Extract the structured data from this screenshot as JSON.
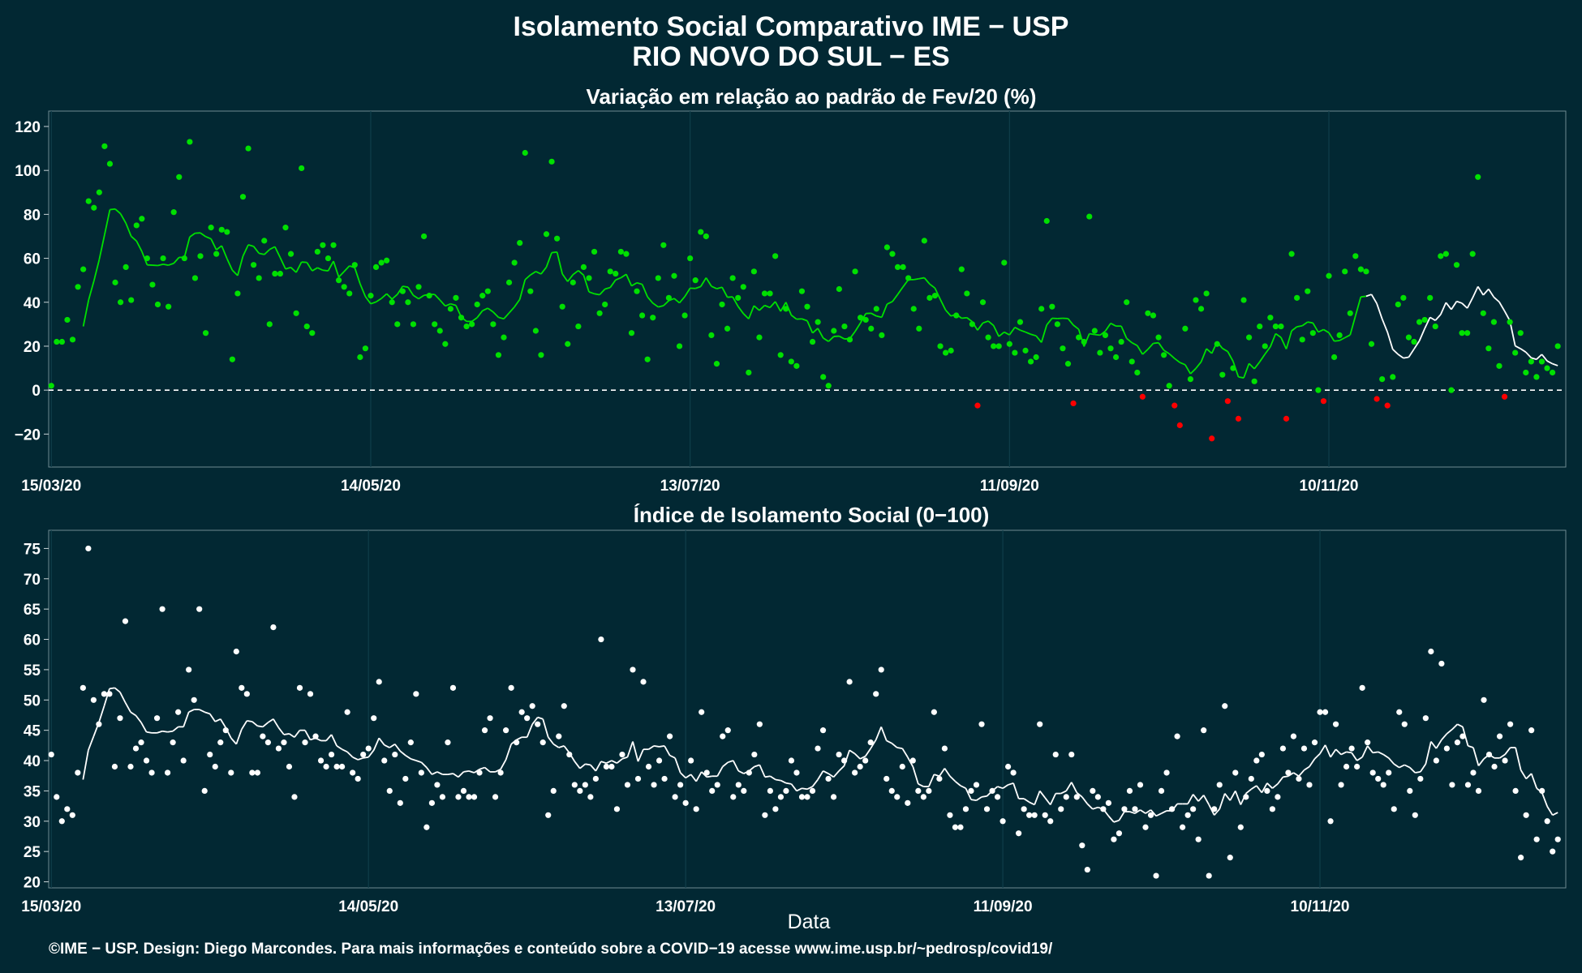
{
  "title_line1": "Isolamento Social Comparativo IME − USP",
  "title_line2": "RIO NOVO DO SUL − ES",
  "x_label": "Data",
  "caption": "©IME − USP. Design: Diego Marcondes. Para mais informações e conteúdo sobre a COVID−19 acesse www.ime.usp.br/~pedrosp/covid19/",
  "colors": {
    "background": "#022833",
    "positive": "#00e000",
    "negative": "#ff0000",
    "recent": "#ffffff",
    "index": "#ffffff"
  },
  "chart_data": [
    {
      "type": "scatter",
      "title": "Variação em relação ao padrão de Fev/20 (%)",
      "x_start": "15/03/20",
      "x_tick_labels": [
        "15/03/20",
        "14/05/20",
        "13/07/20",
        "11/09/20",
        "10/11/20"
      ],
      "ylim": [
        -35,
        127
      ],
      "y_ticks": [
        -20,
        0,
        20,
        40,
        60,
        80,
        100,
        120
      ],
      "reference_line": 0,
      "series": [
        {
          "values": [
            2,
            22,
            22,
            32,
            23,
            47,
            55,
            86,
            83,
            90,
            111,
            103,
            49,
            40,
            56,
            41,
            75,
            78,
            60,
            48,
            39,
            60,
            38,
            81,
            97,
            60,
            113,
            51,
            61,
            26,
            74,
            62,
            73,
            72,
            14,
            44,
            88,
            110,
            57,
            51,
            68,
            30,
            53,
            53,
            74,
            62,
            35,
            101,
            29,
            26,
            63,
            66,
            60,
            66,
            50,
            47,
            44,
            57,
            15,
            19,
            43,
            56,
            58,
            59,
            40,
            30,
            45,
            40,
            30,
            47,
            70,
            43,
            30,
            27,
            21,
            37,
            42,
            33,
            29,
            30,
            39,
            43,
            45,
            30,
            16,
            24,
            49,
            58,
            67,
            108,
            45,
            27,
            16,
            71,
            104,
            69,
            38,
            21,
            49,
            29,
            56,
            51,
            63,
            35,
            39,
            54,
            53,
            63,
            62,
            26,
            45,
            34,
            14,
            33,
            51,
            66,
            42,
            52,
            20,
            34,
            60,
            50,
            72,
            70,
            25,
            12,
            39,
            28,
            51,
            42,
            47,
            8,
            54,
            24,
            44,
            44,
            61,
            16,
            37,
            13,
            11,
            45,
            38,
            22,
            31,
            6,
            2,
            27,
            46,
            29,
            23,
            54,
            33,
            32,
            28,
            37,
            25,
            65,
            62,
            56,
            56,
            51,
            37,
            28,
            68,
            42,
            43,
            20,
            17,
            18,
            34,
            55,
            44,
            30,
            -7,
            40,
            24,
            20,
            20,
            58,
            21,
            17,
            31,
            18,
            13,
            15,
            37,
            77,
            38,
            30,
            19,
            12,
            -6,
            24,
            22,
            79,
            27,
            17,
            25,
            19,
            15,
            22,
            40,
            13,
            8,
            -3,
            35,
            34,
            24,
            16,
            2,
            -7,
            -16,
            28,
            5,
            41,
            37,
            44,
            -22,
            21,
            7,
            -5,
            10,
            -13,
            41,
            24,
            4,
            29,
            20,
            33,
            29,
            29,
            -13,
            62,
            42,
            23,
            45,
            26,
            0,
            -5,
            52,
            15,
            25,
            54,
            35,
            61,
            55,
            54,
            21,
            -4,
            5,
            -7,
            6,
            39,
            42,
            24,
            22,
            31,
            32,
            42,
            29,
            61,
            62,
            0,
            57,
            26,
            26,
            62,
            97,
            35,
            19,
            31,
            11,
            -3,
            31,
            17,
            26,
            8,
            13,
            6,
            13,
            10,
            8,
            20
          ],
          "markers": "green_if_positive_red_if_negative"
        },
        {
          "name": "média móvel",
          "note": "smoothed line; last weeks drawn in white",
          "values": "7-day moving average of the points above"
        }
      ]
    },
    {
      "type": "scatter",
      "title": "Índice de Isolamento Social (0−100)",
      "x_tick_labels": [
        "15/03/20",
        "14/05/20",
        "13/07/20",
        "11/09/20",
        "10/11/20"
      ],
      "ylim": [
        19,
        78
      ],
      "y_ticks": [
        20,
        25,
        30,
        35,
        40,
        45,
        50,
        55,
        60,
        65,
        70,
        75
      ],
      "series": [
        {
          "values": [
            41,
            34,
            30,
            32,
            31,
            38,
            52,
            75,
            50,
            46,
            51,
            51,
            39,
            47,
            63,
            39,
            42,
            43,
            40,
            38,
            47,
            65,
            38,
            43,
            48,
            40,
            55,
            50,
            65,
            35,
            41,
            39,
            43,
            45,
            38,
            58,
            52,
            51,
            38,
            38,
            44,
            43,
            62,
            42,
            43,
            39,
            34,
            52,
            43,
            51,
            44,
            40,
            39,
            41,
            39,
            39,
            48,
            38,
            37,
            41,
            42,
            47,
            53,
            40,
            35,
            41,
            33,
            37,
            43,
            51,
            38,
            29,
            33,
            36,
            34,
            43,
            52,
            34,
            35,
            34,
            34,
            38,
            45,
            47,
            34,
            38,
            45,
            52,
            43,
            48,
            47,
            49,
            46,
            43,
            31,
            35,
            44,
            49,
            41,
            36,
            35,
            36,
            34,
            37,
            60,
            39,
            39,
            32,
            41,
            36,
            55,
            37,
            53,
            39,
            36,
            40,
            37,
            44,
            34,
            36,
            33,
            40,
            32,
            48,
            38,
            35,
            36,
            44,
            45,
            34,
            36,
            35,
            38,
            41,
            46,
            31,
            35,
            32,
            34,
            35,
            40,
            38,
            34,
            34,
            35,
            42,
            45,
            37,
            34,
            41,
            40,
            53,
            38,
            39,
            40,
            43,
            51,
            55,
            37,
            35,
            34,
            39,
            33,
            40,
            35,
            34,
            35,
            48,
            37,
            42,
            31,
            29,
            29,
            32,
            35,
            36,
            46,
            32,
            35,
            34,
            30,
            39,
            38,
            28,
            32,
            31,
            31,
            46,
            31,
            30,
            41,
            32,
            34,
            41,
            34,
            26,
            22,
            35,
            34,
            32,
            33,
            27,
            28,
            32,
            35,
            32,
            36,
            29,
            31,
            21,
            35,
            38,
            32,
            44,
            29,
            31,
            32,
            27,
            45,
            21,
            32,
            36,
            49,
            24,
            38,
            29,
            34,
            37,
            40,
            41,
            35,
            32,
            34,
            42,
            38,
            44,
            37,
            42,
            36,
            43,
            48,
            48,
            30,
            46,
            36,
            39,
            42,
            39,
            52,
            43,
            38,
            37,
            36,
            38,
            32,
            48,
            46,
            35,
            31,
            37,
            47,
            58,
            40,
            56,
            42,
            36,
            43,
            44,
            36,
            38,
            35,
            50,
            41,
            39,
            44,
            40,
            46,
            35,
            24,
            31,
            45,
            27,
            35,
            30,
            25,
            27
          ]
        },
        {
          "name": "média móvel",
          "values": "7-day moving average of the points above"
        }
      ]
    }
  ]
}
